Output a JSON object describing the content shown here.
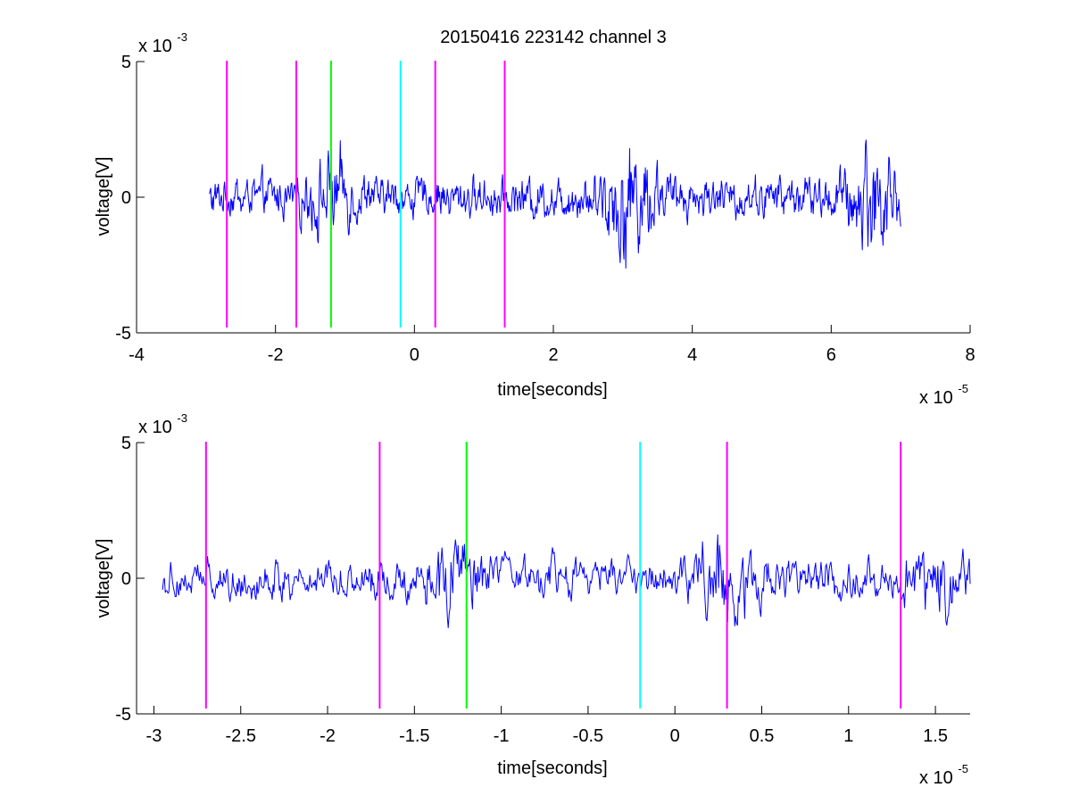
{
  "figure": {
    "title": "20150416 223142 channel 3"
  },
  "colors": {
    "trace": "#0000ff",
    "magenta": "#ff00ff",
    "green": "#00ff00",
    "cyan": "#00ffff",
    "axis": "#000000"
  },
  "chart_data": [
    {
      "type": "line",
      "xlabel": "time[seconds]",
      "ylabel": "voltage[V]",
      "x_exponent_label": "x 10",
      "x_exponent": "-5",
      "y_exponent_label": "x 10",
      "y_exponent": "-3",
      "xlim": [
        -4,
        8
      ],
      "ylim": [
        -5,
        5
      ],
      "xticks": [
        "-4",
        "-2",
        "0",
        "2",
        "4",
        "6",
        "8"
      ],
      "yticks": [
        "-5",
        "0",
        "5"
      ],
      "signal_x_range": [
        -2.95,
        7.0
      ],
      "signal_amplitude_approx": 1.2,
      "bursts": [
        {
          "center": -1.2,
          "amplitude": 2.6
        },
        {
          "center": 3.1,
          "amplitude": 4.0
        },
        {
          "center": 6.6,
          "amplitude": 3.6
        }
      ],
      "markers": [
        {
          "x": -2.7,
          "color": "magenta"
        },
        {
          "x": -1.7,
          "color": "magenta"
        },
        {
          "x": -1.2,
          "color": "green"
        },
        {
          "x": -0.2,
          "color": "cyan"
        },
        {
          "x": 0.3,
          "color": "magenta"
        },
        {
          "x": 1.3,
          "color": "magenta"
        }
      ]
    },
    {
      "type": "line",
      "xlabel": "time[seconds]",
      "ylabel": "voltage[V]",
      "x_exponent_label": "x 10",
      "x_exponent": "-5",
      "y_exponent_label": "x 10",
      "y_exponent": "-3",
      "xlim": [
        -3.1,
        1.7
      ],
      "ylim": [
        -5,
        5
      ],
      "xticks": [
        "-3",
        "-2.5",
        "-2",
        "-1.5",
        "-1",
        "-0.5",
        "0",
        "0.5",
        "1",
        "1.5"
      ],
      "xtick_values": [
        -3,
        -2.5,
        -2,
        -1.5,
        -1,
        -0.5,
        0,
        0.5,
        1,
        1.5
      ],
      "yticks": [
        "-5",
        "0",
        "5"
      ],
      "signal_x_range": [
        -2.95,
        1.7
      ],
      "signal_amplitude_approx": 1.2,
      "bursts": [
        {
          "center": -1.3,
          "amplitude": 2.7
        },
        {
          "center": 0.28,
          "amplitude": 3.2
        },
        {
          "center": 1.5,
          "amplitude": 2.5
        }
      ],
      "markers": [
        {
          "x": -2.7,
          "color": "magenta"
        },
        {
          "x": -1.7,
          "color": "magenta"
        },
        {
          "x": -1.2,
          "color": "green"
        },
        {
          "x": -0.2,
          "color": "cyan"
        },
        {
          "x": 0.3,
          "color": "magenta"
        },
        {
          "x": 1.3,
          "color": "magenta"
        }
      ]
    }
  ]
}
